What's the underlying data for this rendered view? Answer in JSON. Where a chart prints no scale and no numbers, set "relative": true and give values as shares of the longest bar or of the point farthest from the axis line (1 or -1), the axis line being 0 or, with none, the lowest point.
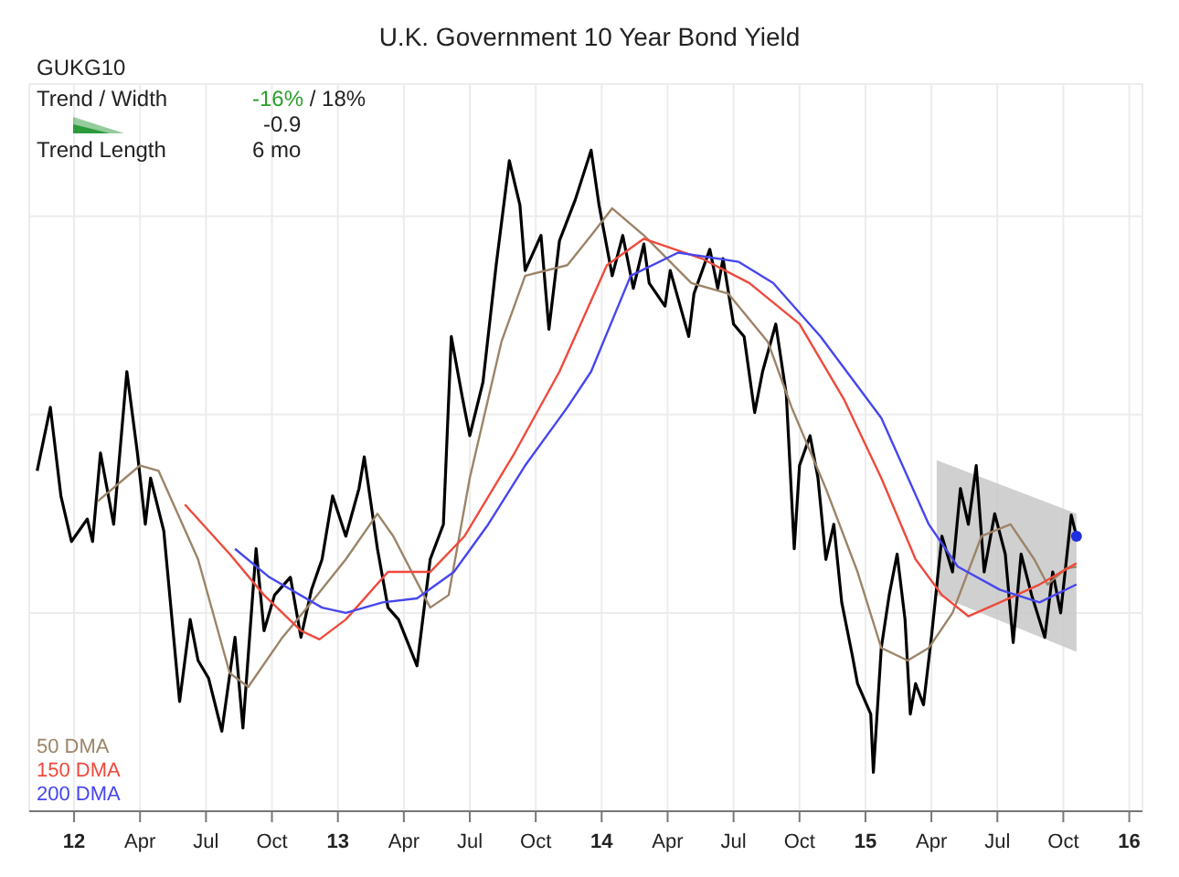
{
  "chart_data": {
    "type": "line",
    "title": "U.K. Government 10 Year Bond Yield",
    "relative": true,
    "grid": true,
    "legend": "bottom left",
    "annotations": [
      "GUKG10",
      "Trend / Width",
      "-16% / 18%",
      "-0.9",
      "Trend Length",
      "6 mo"
    ],
    "xlim": [
      2011.83,
      2016.05
    ],
    "xticks": [
      {
        "value": 2012,
        "label": "12"
      },
      {
        "value": 2012.25,
        "label": "Apr"
      },
      {
        "value": 2012.5,
        "label": "Jul"
      },
      {
        "value": 2012.75,
        "label": "Oct"
      },
      {
        "value": 2013,
        "label": "13"
      },
      {
        "value": 2013.25,
        "label": "Apr"
      },
      {
        "value": 2013.5,
        "label": "Jul"
      },
      {
        "value": 2013.75,
        "label": "Oct"
      },
      {
        "value": 2014,
        "label": "14"
      },
      {
        "value": 2014.25,
        "label": "Apr"
      },
      {
        "value": 2014.5,
        "label": "Jul"
      },
      {
        "value": 2014.75,
        "label": "Oct"
      },
      {
        "value": 2015,
        "label": "15"
      },
      {
        "value": 2015.25,
        "label": "Apr"
      },
      {
        "value": 2015.5,
        "label": "Jul"
      },
      {
        "value": 2015.75,
        "label": "Oct"
      },
      {
        "value": 2016,
        "label": "16"
      }
    ],
    "series": [
      {
        "type": "area",
        "color": "#c8c8c8",
        "x": [
          2015.27,
          2015.8
        ],
        "values": [
          null,
          null
        ],
        "lower": [
          0.327,
          0.241
        ],
        "upper": [
          0.531,
          0.45
        ]
      },
      {
        "color": "#000000",
        "x": [
          2011.86,
          2011.91,
          2011.95,
          2011.99,
          2012.05,
          2012.07,
          2012.1,
          2012.15,
          2012.2,
          2012.24,
          2012.27,
          2012.29,
          2012.34,
          2012.4,
          2012.44,
          2012.47,
          2012.51,
          2012.56,
          2012.61,
          2012.64,
          2012.69,
          2012.72,
          2012.76,
          2012.82,
          2012.86,
          2012.9,
          2012.94,
          2012.98,
          2013.03,
          2013.08,
          2013.1,
          2013.15,
          2013.19,
          2013.23,
          2013.3,
          2013.35,
          2013.4,
          2013.43,
          2013.47,
          2013.5,
          2013.55,
          2013.6,
          2013.65,
          2013.69,
          2013.71,
          2013.77,
          2013.8,
          2013.84,
          2013.9,
          2013.96,
          2013.99,
          2014.04,
          2014.08,
          2014.12,
          2014.16,
          2014.18,
          2014.24,
          2014.26,
          2014.33,
          2014.35,
          2014.41,
          2014.44,
          2014.46,
          2014.5,
          2014.54,
          2014.58,
          2014.61,
          2014.66,
          2014.7,
          2014.73,
          2014.75,
          2014.79,
          2014.82,
          2014.85,
          2014.88,
          2014.91,
          2014.95,
          2014.97,
          2015.02,
          2015.03,
          2015.06,
          2015.09,
          2015.12,
          2015.15,
          2015.17,
          2015.19,
          2015.22,
          2015.25,
          2015.29,
          2015.33,
          2015.36,
          2015.39,
          2015.42,
          2015.45,
          2015.49,
          2015.53,
          2015.56,
          2015.59,
          2015.63,
          2015.68,
          2015.71,
          2015.74,
          2015.78,
          2015.8
        ],
        "values": [
          0.515,
          0.611,
          0.477,
          0.408,
          0.442,
          0.408,
          0.542,
          0.434,
          0.665,
          0.542,
          0.434,
          0.504,
          0.424,
          0.166,
          0.29,
          0.228,
          0.201,
          0.121,
          0.263,
          0.126,
          0.397,
          0.273,
          0.327,
          0.354,
          0.263,
          0.335,
          0.381,
          0.477,
          0.416,
          0.488,
          0.536,
          0.397,
          0.308,
          0.29,
          0.22,
          0.381,
          0.434,
          0.718,
          0.63,
          0.568,
          0.649,
          0.826,
          0.984,
          0.917,
          0.818,
          0.871,
          0.729,
          0.863,
          0.925,
          1,
          0.917,
          0.81,
          0.871,
          0.791,
          0.858,
          0.799,
          0.764,
          0.818,
          0.718,
          0.783,
          0.85,
          0.791,
          0.836,
          0.737,
          0.718,
          0.603,
          0.665,
          0.737,
          0.63,
          0.397,
          0.523,
          0.568,
          0.504,
          0.381,
          0.434,
          0.316,
          0.236,
          0.193,
          0.147,
          0.059,
          0.247,
          0.327,
          0.389,
          0.29,
          0.147,
          0.193,
          0.161,
          0.263,
          0.416,
          0.362,
          0.488,
          0.434,
          0.523,
          0.362,
          0.45,
          0.389,
          0.255,
          0.389,
          0.327,
          0.263,
          0.362,
          0.3,
          0.448,
          0.416
        ]
      },
      {
        "name": "50 DMA",
        "color": "#9c8468",
        "x": [
          2012.09,
          2012.25,
          2012.32,
          2012.47,
          2012.59,
          2012.66,
          2012.79,
          2012.9,
          2013.03,
          2013.15,
          2013.21,
          2013.35,
          2013.42,
          2013.5,
          2013.62,
          2013.71,
          2013.87,
          2013.96,
          2014.04,
          2014.16,
          2014.34,
          2014.48,
          2014.63,
          2014.72,
          2014.85,
          2014.97,
          2015.06,
          2015.16,
          2015.24,
          2015.33,
          2015.44,
          2015.55,
          2015.64,
          2015.69,
          2015.76,
          2015.8
        ],
        "values": [
          0.469,
          0.523,
          0.515,
          0.381,
          0.209,
          0.188,
          0.263,
          0.316,
          0.381,
          0.45,
          0.416,
          0.308,
          0.327,
          0.504,
          0.71,
          0.81,
          0.826,
          0.871,
          0.912,
          0.871,
          0.799,
          0.783,
          0.71,
          0.611,
          0.488,
          0.362,
          0.247,
          0.228,
          0.247,
          0.3,
          0.416,
          0.434,
          0.381,
          0.343,
          0.367,
          0.37
        ]
      },
      {
        "name": "150 DMA",
        "color": "#ee4a3c",
        "x": [
          2012.42,
          2012.59,
          2012.72,
          2012.86,
          2012.93,
          2013.03,
          2013.19,
          2013.35,
          2013.48,
          2013.67,
          2013.84,
          2014.02,
          2014.16,
          2014.38,
          2014.56,
          2014.75,
          2014.92,
          2015.06,
          2015.19,
          2015.29,
          2015.39,
          2015.51,
          2015.66,
          2015.8
        ],
        "values": [
          0.464,
          0.389,
          0.327,
          0.273,
          0.26,
          0.29,
          0.362,
          0.362,
          0.416,
          0.542,
          0.665,
          0.826,
          0.866,
          0.836,
          0.799,
          0.737,
          0.622,
          0.504,
          0.381,
          0.327,
          0.295,
          0.316,
          0.343,
          0.375
        ]
      },
      {
        "name": "200 DMA",
        "color": "#4646ee",
        "x": [
          2012.61,
          2012.74,
          2012.94,
          2013.03,
          2013.17,
          2013.3,
          2013.44,
          2013.57,
          2013.71,
          2013.87,
          2013.96,
          2014.11,
          2014.29,
          2014.52,
          2014.65,
          2014.83,
          2015.06,
          2015.24,
          2015.35,
          2015.51,
          2015.66,
          2015.8
        ],
        "values": [
          0.397,
          0.354,
          0.308,
          0.3,
          0.316,
          0.322,
          0.362,
          0.434,
          0.523,
          0.611,
          0.665,
          0.81,
          0.845,
          0.831,
          0.799,
          0.718,
          0.595,
          0.434,
          0.37,
          0.335,
          0.316,
          0.343
        ]
      },
      {
        "type": "scatter",
        "color": "#1f2fe0",
        "x": [
          2015.8
        ],
        "values": [
          0.416
        ]
      }
    ]
  }
}
